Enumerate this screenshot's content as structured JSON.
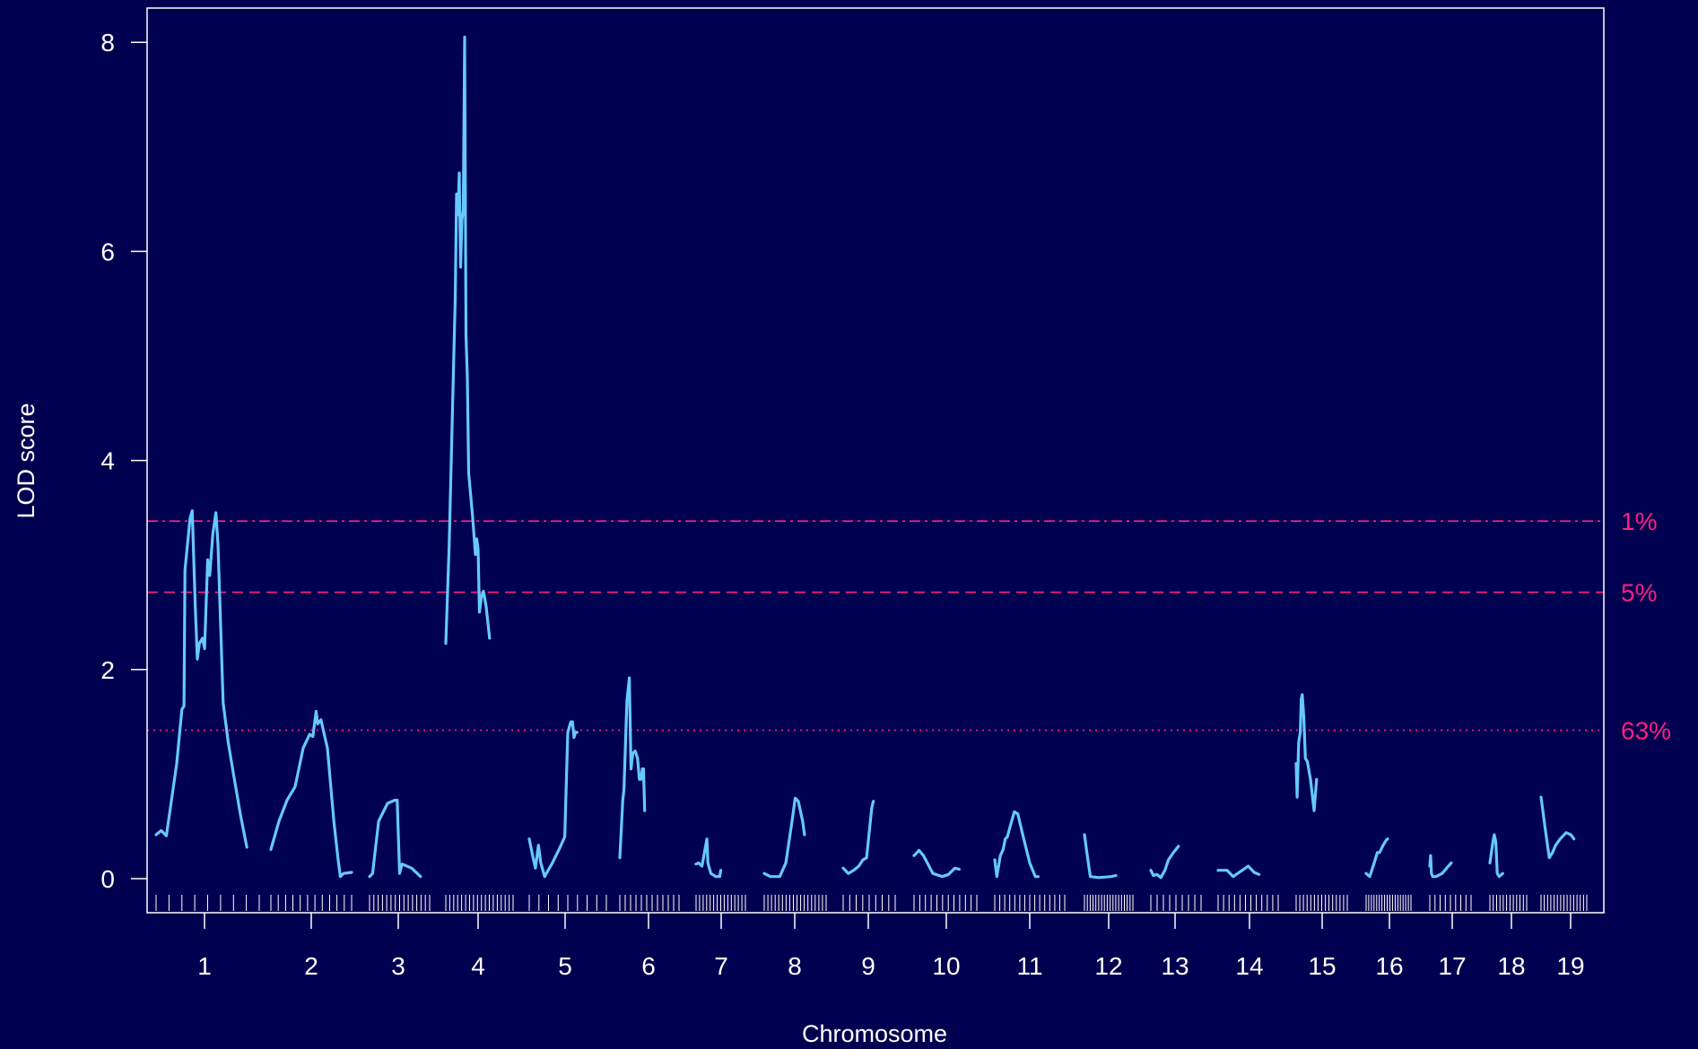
{
  "chart_data": {
    "type": "line",
    "xlabel": "Chromosome",
    "ylabel": "LOD score",
    "ylim": [
      0,
      8
    ],
    "yticks": [
      0,
      2,
      4,
      6,
      8
    ],
    "chromosomes": [
      "1",
      "2",
      "3",
      "4",
      "5",
      "6",
      "7",
      "8",
      "9",
      "10",
      "11",
      "12",
      "13",
      "14",
      "15",
      "16",
      "17",
      "18",
      "19"
    ],
    "thresholds": [
      {
        "label": "1%",
        "value": 3.42,
        "style": "dashdot"
      },
      {
        "label": "5%",
        "value": 2.74,
        "style": "dashed"
      },
      {
        "label": "63%",
        "value": 1.42,
        "style": "dotted"
      }
    ],
    "colors": {
      "background": "#000050",
      "curve": "#66c8ff",
      "threshold": "#ff1f7f",
      "axis": "#ffffff"
    },
    "series": [
      {
        "chr": "1",
        "points": [
          [
            0.0,
            0.42
          ],
          [
            0.05,
            0.46
          ],
          [
            0.1,
            0.41
          ],
          [
            0.2,
            1.1
          ],
          [
            0.25,
            1.62
          ],
          [
            0.27,
            1.65
          ],
          [
            0.28,
            2.95
          ],
          [
            0.33,
            3.45
          ],
          [
            0.35,
            3.52
          ],
          [
            0.38,
            2.6
          ],
          [
            0.4,
            2.1
          ],
          [
            0.42,
            2.25
          ],
          [
            0.45,
            2.3
          ],
          [
            0.47,
            2.2
          ],
          [
            0.5,
            3.05
          ],
          [
            0.52,
            2.9
          ],
          [
            0.55,
            3.3
          ],
          [
            0.58,
            3.5
          ],
          [
            0.6,
            3.2
          ],
          [
            0.62,
            2.6
          ],
          [
            0.65,
            1.68
          ],
          [
            0.7,
            1.3
          ],
          [
            0.75,
            1.0
          ],
          [
            0.82,
            0.6
          ],
          [
            0.88,
            0.3
          ]
        ]
      },
      {
        "chr": "2",
        "points": [
          [
            0.0,
            0.28
          ],
          [
            0.1,
            0.55
          ],
          [
            0.2,
            0.75
          ],
          [
            0.3,
            0.88
          ],
          [
            0.4,
            1.25
          ],
          [
            0.48,
            1.38
          ],
          [
            0.52,
            1.36
          ],
          [
            0.56,
            1.6
          ],
          [
            0.58,
            1.48
          ],
          [
            0.62,
            1.52
          ],
          [
            0.7,
            1.25
          ],
          [
            0.78,
            0.55
          ],
          [
            0.83,
            0.2
          ],
          [
            0.86,
            0.02
          ],
          [
            0.9,
            0.05
          ],
          [
            1.0,
            0.06
          ]
        ]
      },
      {
        "chr": "3",
        "points": [
          [
            0.0,
            0.02
          ],
          [
            0.05,
            0.05
          ],
          [
            0.15,
            0.55
          ],
          [
            0.3,
            0.72
          ],
          [
            0.42,
            0.75
          ],
          [
            0.46,
            0.75
          ],
          [
            0.5,
            0.05
          ],
          [
            0.54,
            0.14
          ],
          [
            0.7,
            0.1
          ],
          [
            0.85,
            0.02
          ]
        ]
      },
      {
        "chr": "4",
        "points": [
          [
            0.0,
            2.25
          ],
          [
            0.05,
            3.2
          ],
          [
            0.1,
            4.5
          ],
          [
            0.14,
            5.55
          ],
          [
            0.16,
            6.55
          ],
          [
            0.18,
            6.35
          ],
          [
            0.2,
            6.75
          ],
          [
            0.22,
            5.85
          ],
          [
            0.24,
            6.3
          ],
          [
            0.26,
            6.4
          ],
          [
            0.28,
            8.05
          ],
          [
            0.3,
            5.2
          ],
          [
            0.32,
            4.8
          ],
          [
            0.34,
            3.88
          ],
          [
            0.4,
            3.45
          ],
          [
            0.44,
            3.1
          ],
          [
            0.46,
            3.25
          ],
          [
            0.48,
            3.15
          ],
          [
            0.5,
            2.55
          ],
          [
            0.53,
            2.7
          ],
          [
            0.56,
            2.75
          ],
          [
            0.6,
            2.6
          ],
          [
            0.65,
            2.3
          ]
        ]
      },
      {
        "chr": "5",
        "points": [
          [
            0.0,
            0.38
          ],
          [
            0.05,
            0.2
          ],
          [
            0.08,
            0.1
          ],
          [
            0.12,
            0.32
          ],
          [
            0.15,
            0.15
          ],
          [
            0.2,
            0.02
          ],
          [
            0.3,
            0.15
          ],
          [
            0.4,
            0.3
          ],
          [
            0.46,
            0.4
          ],
          [
            0.5,
            1.4
          ],
          [
            0.54,
            1.5
          ],
          [
            0.56,
            1.5
          ],
          [
            0.58,
            1.35
          ],
          [
            0.6,
            1.4
          ],
          [
            0.62,
            1.4
          ]
        ]
      },
      {
        "chr": "6",
        "points": [
          [
            0.0,
            0.2
          ],
          [
            0.05,
            0.75
          ],
          [
            0.07,
            0.85
          ],
          [
            0.12,
            1.7
          ],
          [
            0.16,
            1.92
          ],
          [
            0.19,
            1.05
          ],
          [
            0.22,
            1.2
          ],
          [
            0.26,
            1.22
          ],
          [
            0.3,
            1.15
          ],
          [
            0.33,
            0.95
          ],
          [
            0.36,
            0.95
          ],
          [
            0.38,
            1.05
          ],
          [
            0.4,
            1.05
          ],
          [
            0.42,
            0.65
          ]
        ]
      },
      {
        "chr": "7",
        "points": [
          [
            0.0,
            0.14
          ],
          [
            0.05,
            0.15
          ],
          [
            0.12,
            0.12
          ],
          [
            0.22,
            0.38
          ],
          [
            0.24,
            0.15
          ],
          [
            0.3,
            0.05
          ],
          [
            0.4,
            0.02
          ],
          [
            0.48,
            0.02
          ],
          [
            0.5,
            0.08
          ]
        ]
      },
      {
        "chr": "8",
        "points": [
          [
            0.0,
            0.05
          ],
          [
            0.1,
            0.02
          ],
          [
            0.25,
            0.02
          ],
          [
            0.35,
            0.15
          ],
          [
            0.45,
            0.55
          ],
          [
            0.5,
            0.77
          ],
          [
            0.55,
            0.74
          ],
          [
            0.62,
            0.55
          ],
          [
            0.65,
            0.42
          ]
        ]
      },
      {
        "chr": "9",
        "points": [
          [
            0.0,
            0.1
          ],
          [
            0.1,
            0.05
          ],
          [
            0.2,
            0.08
          ],
          [
            0.3,
            0.12
          ],
          [
            0.38,
            0.18
          ],
          [
            0.45,
            0.2
          ],
          [
            0.55,
            0.68
          ],
          [
            0.58,
            0.74
          ]
        ]
      },
      {
        "chr": "10",
        "points": [
          [
            0.0,
            0.22
          ],
          [
            0.08,
            0.27
          ],
          [
            0.15,
            0.22
          ],
          [
            0.3,
            0.05
          ],
          [
            0.45,
            0.02
          ],
          [
            0.55,
            0.04
          ],
          [
            0.65,
            0.1
          ],
          [
            0.72,
            0.09
          ]
        ]
      },
      {
        "chr": "11",
        "points": [
          [
            0.0,
            0.18
          ],
          [
            0.03,
            0.02
          ],
          [
            0.08,
            0.22
          ],
          [
            0.12,
            0.28
          ],
          [
            0.15,
            0.38
          ],
          [
            0.18,
            0.4
          ],
          [
            0.22,
            0.5
          ],
          [
            0.28,
            0.64
          ],
          [
            0.33,
            0.62
          ],
          [
            0.4,
            0.42
          ],
          [
            0.5,
            0.15
          ],
          [
            0.58,
            0.02
          ],
          [
            0.62,
            0.02
          ]
        ]
      },
      {
        "chr": "12",
        "points": [
          [
            0.0,
            0.42
          ],
          [
            0.05,
            0.25
          ],
          [
            0.12,
            0.02
          ],
          [
            0.3,
            0.01
          ],
          [
            0.55,
            0.02
          ],
          [
            0.65,
            0.03
          ]
        ]
      },
      {
        "chr": "13",
        "points": [
          [
            0.0,
            0.08
          ],
          [
            0.05,
            0.03
          ],
          [
            0.12,
            0.04
          ],
          [
            0.2,
            0.01
          ],
          [
            0.28,
            0.08
          ],
          [
            0.35,
            0.18
          ],
          [
            0.45,
            0.25
          ],
          [
            0.55,
            0.31
          ]
        ]
      },
      {
        "chr": "14",
        "points": [
          [
            0.0,
            0.08
          ],
          [
            0.15,
            0.08
          ],
          [
            0.25,
            0.02
          ],
          [
            0.4,
            0.08
          ],
          [
            0.5,
            0.12
          ],
          [
            0.6,
            0.06
          ],
          [
            0.68,
            0.04
          ]
        ]
      },
      {
        "chr": "15",
        "points": [
          [
            0.0,
            1.1
          ],
          [
            0.02,
            0.78
          ],
          [
            0.05,
            1.3
          ],
          [
            0.08,
            1.4
          ],
          [
            0.1,
            1.72
          ],
          [
            0.12,
            1.76
          ],
          [
            0.15,
            1.55
          ],
          [
            0.18,
            1.15
          ],
          [
            0.22,
            1.12
          ],
          [
            0.28,
            0.95
          ],
          [
            0.35,
            0.65
          ],
          [
            0.4,
            0.95
          ]
        ]
      },
      {
        "chr": "16",
        "points": [
          [
            0.0,
            0.05
          ],
          [
            0.08,
            0.02
          ],
          [
            0.18,
            0.15
          ],
          [
            0.25,
            0.25
          ],
          [
            0.3,
            0.25
          ],
          [
            0.38,
            0.32
          ],
          [
            0.45,
            0.37
          ],
          [
            0.48,
            0.38
          ]
        ]
      },
      {
        "chr": "17",
        "points": [
          [
            0.0,
            0.12
          ],
          [
            0.02,
            0.22
          ],
          [
            0.04,
            0.05
          ],
          [
            0.07,
            0.02
          ],
          [
            0.15,
            0.02
          ],
          [
            0.3,
            0.05
          ],
          [
            0.45,
            0.12
          ],
          [
            0.52,
            0.15
          ]
        ]
      },
      {
        "chr": "18",
        "points": [
          [
            0.0,
            0.15
          ],
          [
            0.08,
            0.35
          ],
          [
            0.12,
            0.42
          ],
          [
            0.16,
            0.35
          ],
          [
            0.2,
            0.05
          ],
          [
            0.25,
            0.02
          ],
          [
            0.35,
            0.05
          ]
        ]
      },
      {
        "chr": "19",
        "points": [
          [
            0.0,
            0.78
          ],
          [
            0.1,
            0.45
          ],
          [
            0.18,
            0.2
          ],
          [
            0.25,
            0.25
          ],
          [
            0.32,
            0.32
          ],
          [
            0.42,
            0.38
          ],
          [
            0.55,
            0.44
          ],
          [
            0.65,
            0.42
          ],
          [
            0.72,
            0.38
          ]
        ]
      }
    ]
  }
}
